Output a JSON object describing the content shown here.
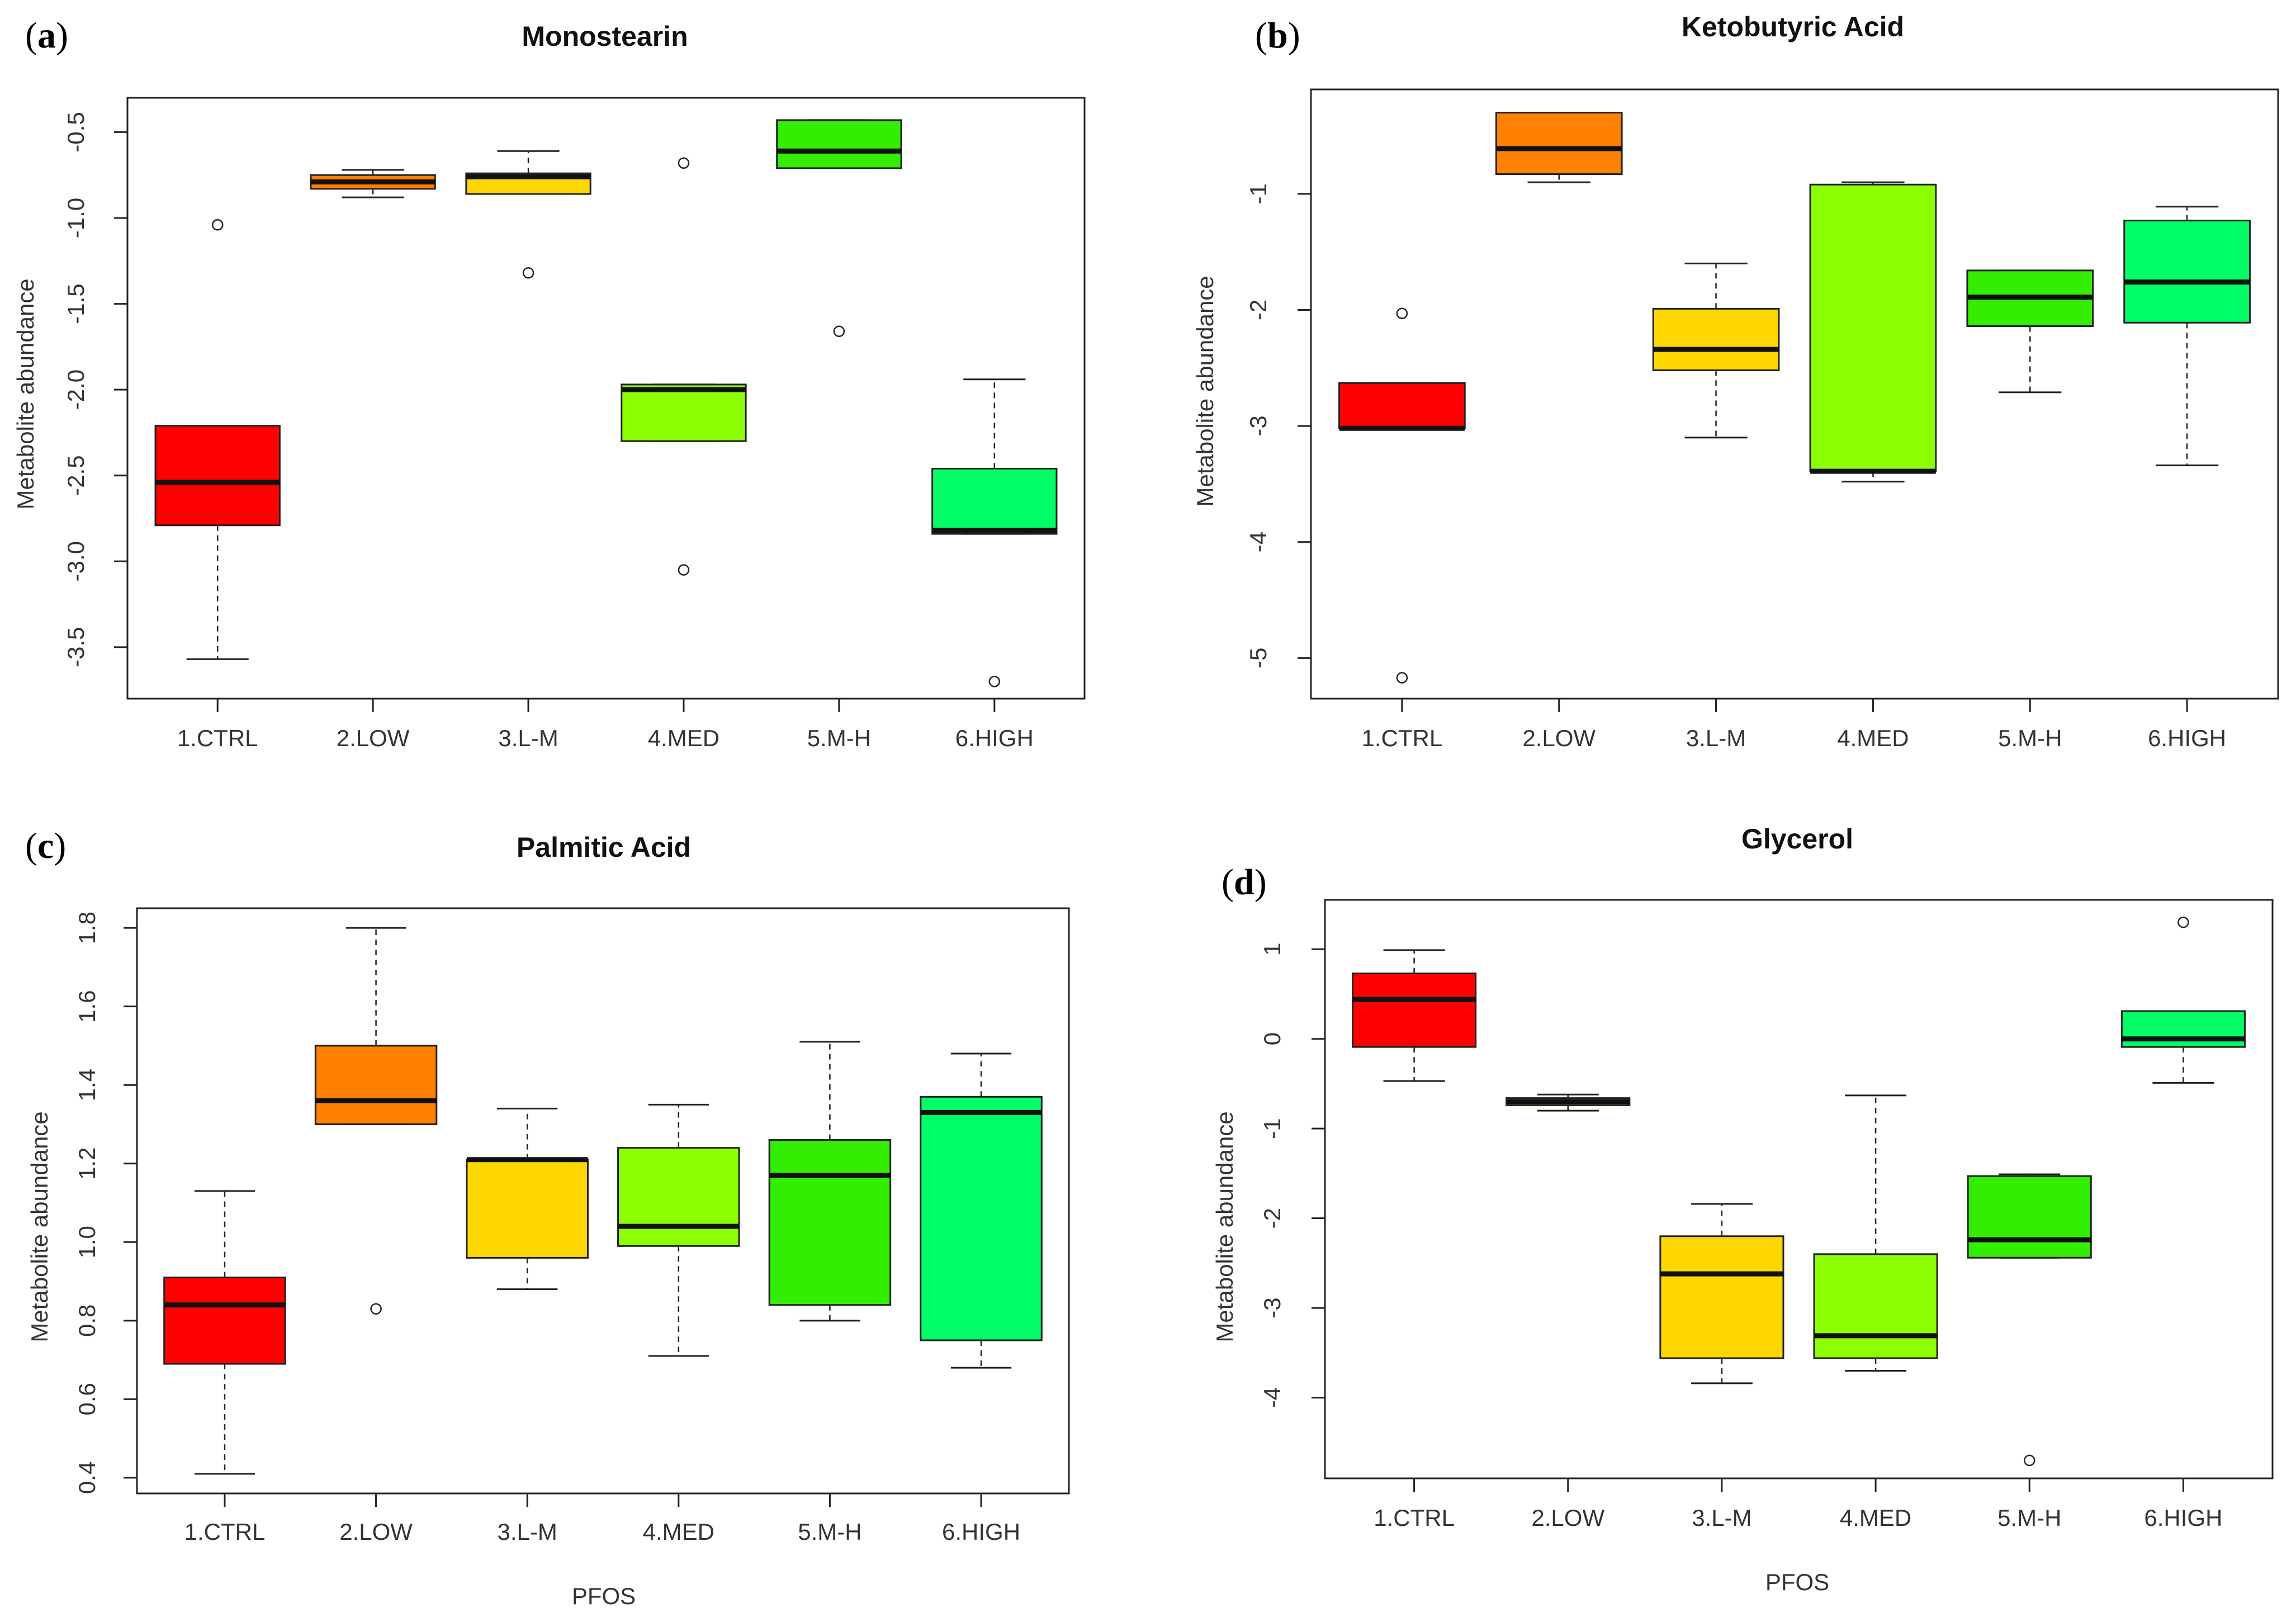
{
  "figure": {
    "panels": [
      {
        "tag_open": "(",
        "tag_letter": "a",
        "tag_close": ")"
      },
      {
        "tag_open": "(",
        "tag_letter": "b",
        "tag_close": ")"
      },
      {
        "tag_open": "(",
        "tag_letter": "c",
        "tag_close": ")"
      },
      {
        "tag_open": "(",
        "tag_letter": "d",
        "tag_close": ")"
      }
    ]
  },
  "colors": {
    "1.CTRL": "#ff0000",
    "2.LOW": "#ff7f00",
    "3.L-M": "#ffd700",
    "4.MED": "#8cff00",
    "5.M-H": "#33ee00",
    "6.HIGH": "#00ff66"
  },
  "chart_data": [
    {
      "type": "boxplot",
      "title": "Monostearin",
      "xlabel": "",
      "ylabel": "Metabolite abundance",
      "categories": [
        "1.CTRL",
        "2.LOW",
        "3.L-M",
        "4.MED",
        "5.M-H",
        "6.HIGH"
      ],
      "ylim": [
        -3.8,
        -0.3
      ],
      "yticks": [
        -0.5,
        -1.0,
        -1.5,
        -2.0,
        -2.5,
        -3.0,
        -3.5
      ],
      "ytick_labels": [
        "-0.5",
        "-1.0",
        "-1.5",
        "-2.0",
        "-2.5",
        "-3.0",
        "-3.5"
      ],
      "boxes": [
        {
          "category": "1.CTRL",
          "whisker_low": -3.57,
          "q1": -2.79,
          "median": -2.54,
          "q3": -2.21,
          "whisker_high": -2.21,
          "outliers": [
            -1.04
          ]
        },
        {
          "category": "2.LOW",
          "whisker_low": -0.88,
          "q1": -0.83,
          "median": -0.79,
          "q3": -0.75,
          "whisker_high": -0.72,
          "outliers": []
        },
        {
          "category": "3.L-M",
          "whisker_low": -0.86,
          "q1": -0.86,
          "median": -0.76,
          "q3": -0.74,
          "whisker_high": -0.61,
          "outliers": [
            -1.32
          ]
        },
        {
          "category": "4.MED",
          "whisker_low": -2.3,
          "q1": -2.3,
          "median": -2.0,
          "q3": -1.97,
          "whisker_high": -1.97,
          "outliers": [
            -0.68,
            -3.05
          ]
        },
        {
          "category": "5.M-H",
          "whisker_low": -0.71,
          "q1": -0.71,
          "median": -0.61,
          "q3": -0.43,
          "whisker_high": -0.43,
          "outliers": [
            -1.66
          ]
        },
        {
          "category": "6.HIGH",
          "whisker_low": -2.84,
          "q1": -2.84,
          "median": -2.82,
          "q3": -2.46,
          "whisker_high": -1.94,
          "outliers": [
            -3.7
          ]
        }
      ]
    },
    {
      "type": "boxplot",
      "title": "Ketobutyric Acid",
      "xlabel": "",
      "ylabel": "Metabolite abundance",
      "categories": [
        "1.CTRL",
        "2.LOW",
        "3.L-M",
        "4.MED",
        "5.M-H",
        "6.HIGH"
      ],
      "ylim": [
        -5.35,
        -0.1
      ],
      "yticks": [
        -1,
        -2,
        -3,
        -4,
        -5
      ],
      "ytick_labels": [
        "-1",
        "-2",
        "-3",
        "-4",
        "-5"
      ],
      "boxes": [
        {
          "category": "1.CTRL",
          "whisker_low": -3.02,
          "q1": -3.02,
          "median": -3.02,
          "q3": -2.63,
          "whisker_high": -2.63,
          "outliers": [
            -2.03,
            -5.17
          ]
        },
        {
          "category": "2.LOW",
          "whisker_low": -0.9,
          "q1": -0.83,
          "median": -0.61,
          "q3": -0.3,
          "whisker_high": -0.3,
          "outliers": []
        },
        {
          "category": "3.L-M",
          "whisker_low": -3.1,
          "q1": -2.52,
          "median": -2.34,
          "q3": -1.99,
          "whisker_high": -1.6,
          "outliers": []
        },
        {
          "category": "4.MED",
          "whisker_low": -3.48,
          "q1": -3.39,
          "median": -3.39,
          "q3": -0.92,
          "whisker_high": -0.9,
          "outliers": []
        },
        {
          "category": "5.M-H",
          "whisker_low": -2.71,
          "q1": -2.14,
          "median": -1.89,
          "q3": -1.66,
          "whisker_high": -1.66,
          "outliers": []
        },
        {
          "category": "6.HIGH",
          "whisker_low": -3.34,
          "q1": -2.11,
          "median": -1.76,
          "q3": -1.23,
          "whisker_high": -1.11,
          "outliers": []
        }
      ]
    },
    {
      "type": "boxplot",
      "title": "Palmitic Acid",
      "xlabel": "PFOS",
      "ylabel": "Metabolite abundance",
      "categories": [
        "1.CTRL",
        "2.LOW",
        "3.L-M",
        "4.MED",
        "5.M-H",
        "6.HIGH"
      ],
      "ylim": [
        0.36,
        1.85
      ],
      "yticks": [
        0.4,
        0.6,
        0.8,
        1.0,
        1.2,
        1.4,
        1.6,
        1.8
      ],
      "ytick_labels": [
        "0.4",
        "0.6",
        "0.8",
        "1.0",
        "1.2",
        "1.4",
        "1.6",
        "1.8"
      ],
      "boxes": [
        {
          "category": "1.CTRL",
          "whisker_low": 0.41,
          "q1": 0.69,
          "median": 0.84,
          "q3": 0.91,
          "whisker_high": 1.13,
          "outliers": []
        },
        {
          "category": "2.LOW",
          "whisker_low": 1.3,
          "q1": 1.3,
          "median": 1.36,
          "q3": 1.5,
          "whisker_high": 1.8,
          "outliers": [
            0.83
          ]
        },
        {
          "category": "3.L-M",
          "whisker_low": 0.88,
          "q1": 0.96,
          "median": 1.21,
          "q3": 1.21,
          "whisker_high": 1.34,
          "outliers": []
        },
        {
          "category": "4.MED",
          "whisker_low": 0.71,
          "q1": 0.99,
          "median": 1.04,
          "q3": 1.24,
          "whisker_high": 1.35,
          "outliers": []
        },
        {
          "category": "5.M-H",
          "whisker_low": 0.8,
          "q1": 0.84,
          "median": 1.17,
          "q3": 1.26,
          "whisker_high": 1.51,
          "outliers": []
        },
        {
          "category": "6.HIGH",
          "whisker_low": 0.68,
          "q1": 0.75,
          "median": 1.33,
          "q3": 1.37,
          "whisker_high": 1.48,
          "outliers": []
        }
      ]
    },
    {
      "type": "boxplot",
      "title": "Glycerol",
      "xlabel": "PFOS",
      "ylabel": "Metabolite abundance",
      "categories": [
        "1.CTRL",
        "2.LOW",
        "3.L-M",
        "4.MED",
        "5.M-H",
        "6.HIGH"
      ],
      "ylim": [
        -4.9,
        1.55
      ],
      "yticks": [
        1,
        0,
        -1,
        -2,
        -3,
        -4
      ],
      "ytick_labels": [
        "1",
        "0",
        "-1",
        "-2",
        "-3",
        "-4"
      ],
      "boxes": [
        {
          "category": "1.CTRL",
          "whisker_low": -0.47,
          "q1": -0.09,
          "median": 0.44,
          "q3": 0.73,
          "whisker_high": 0.99,
          "outliers": []
        },
        {
          "category": "2.LOW",
          "whisker_low": -0.8,
          "q1": -0.74,
          "median": -0.7,
          "q3": -0.66,
          "whisker_high": -0.62,
          "outliers": []
        },
        {
          "category": "3.L-M",
          "whisker_low": -3.84,
          "q1": -3.56,
          "median": -2.62,
          "q3": -2.2,
          "whisker_high": -1.84,
          "outliers": []
        },
        {
          "category": "4.MED",
          "whisker_low": -3.7,
          "q1": -3.56,
          "median": -3.31,
          "q3": -2.4,
          "whisker_high": -0.63,
          "outliers": []
        },
        {
          "category": "5.M-H",
          "whisker_low": -2.44,
          "q1": -2.44,
          "median": -2.24,
          "q3": -1.53,
          "whisker_high": -1.51,
          "outliers": [
            -4.7
          ]
        },
        {
          "category": "6.HIGH",
          "whisker_low": -0.49,
          "q1": -0.09,
          "median": 0.0,
          "q3": 0.31,
          "whisker_high": 0.31,
          "outliers": [
            1.3
          ]
        }
      ]
    }
  ]
}
